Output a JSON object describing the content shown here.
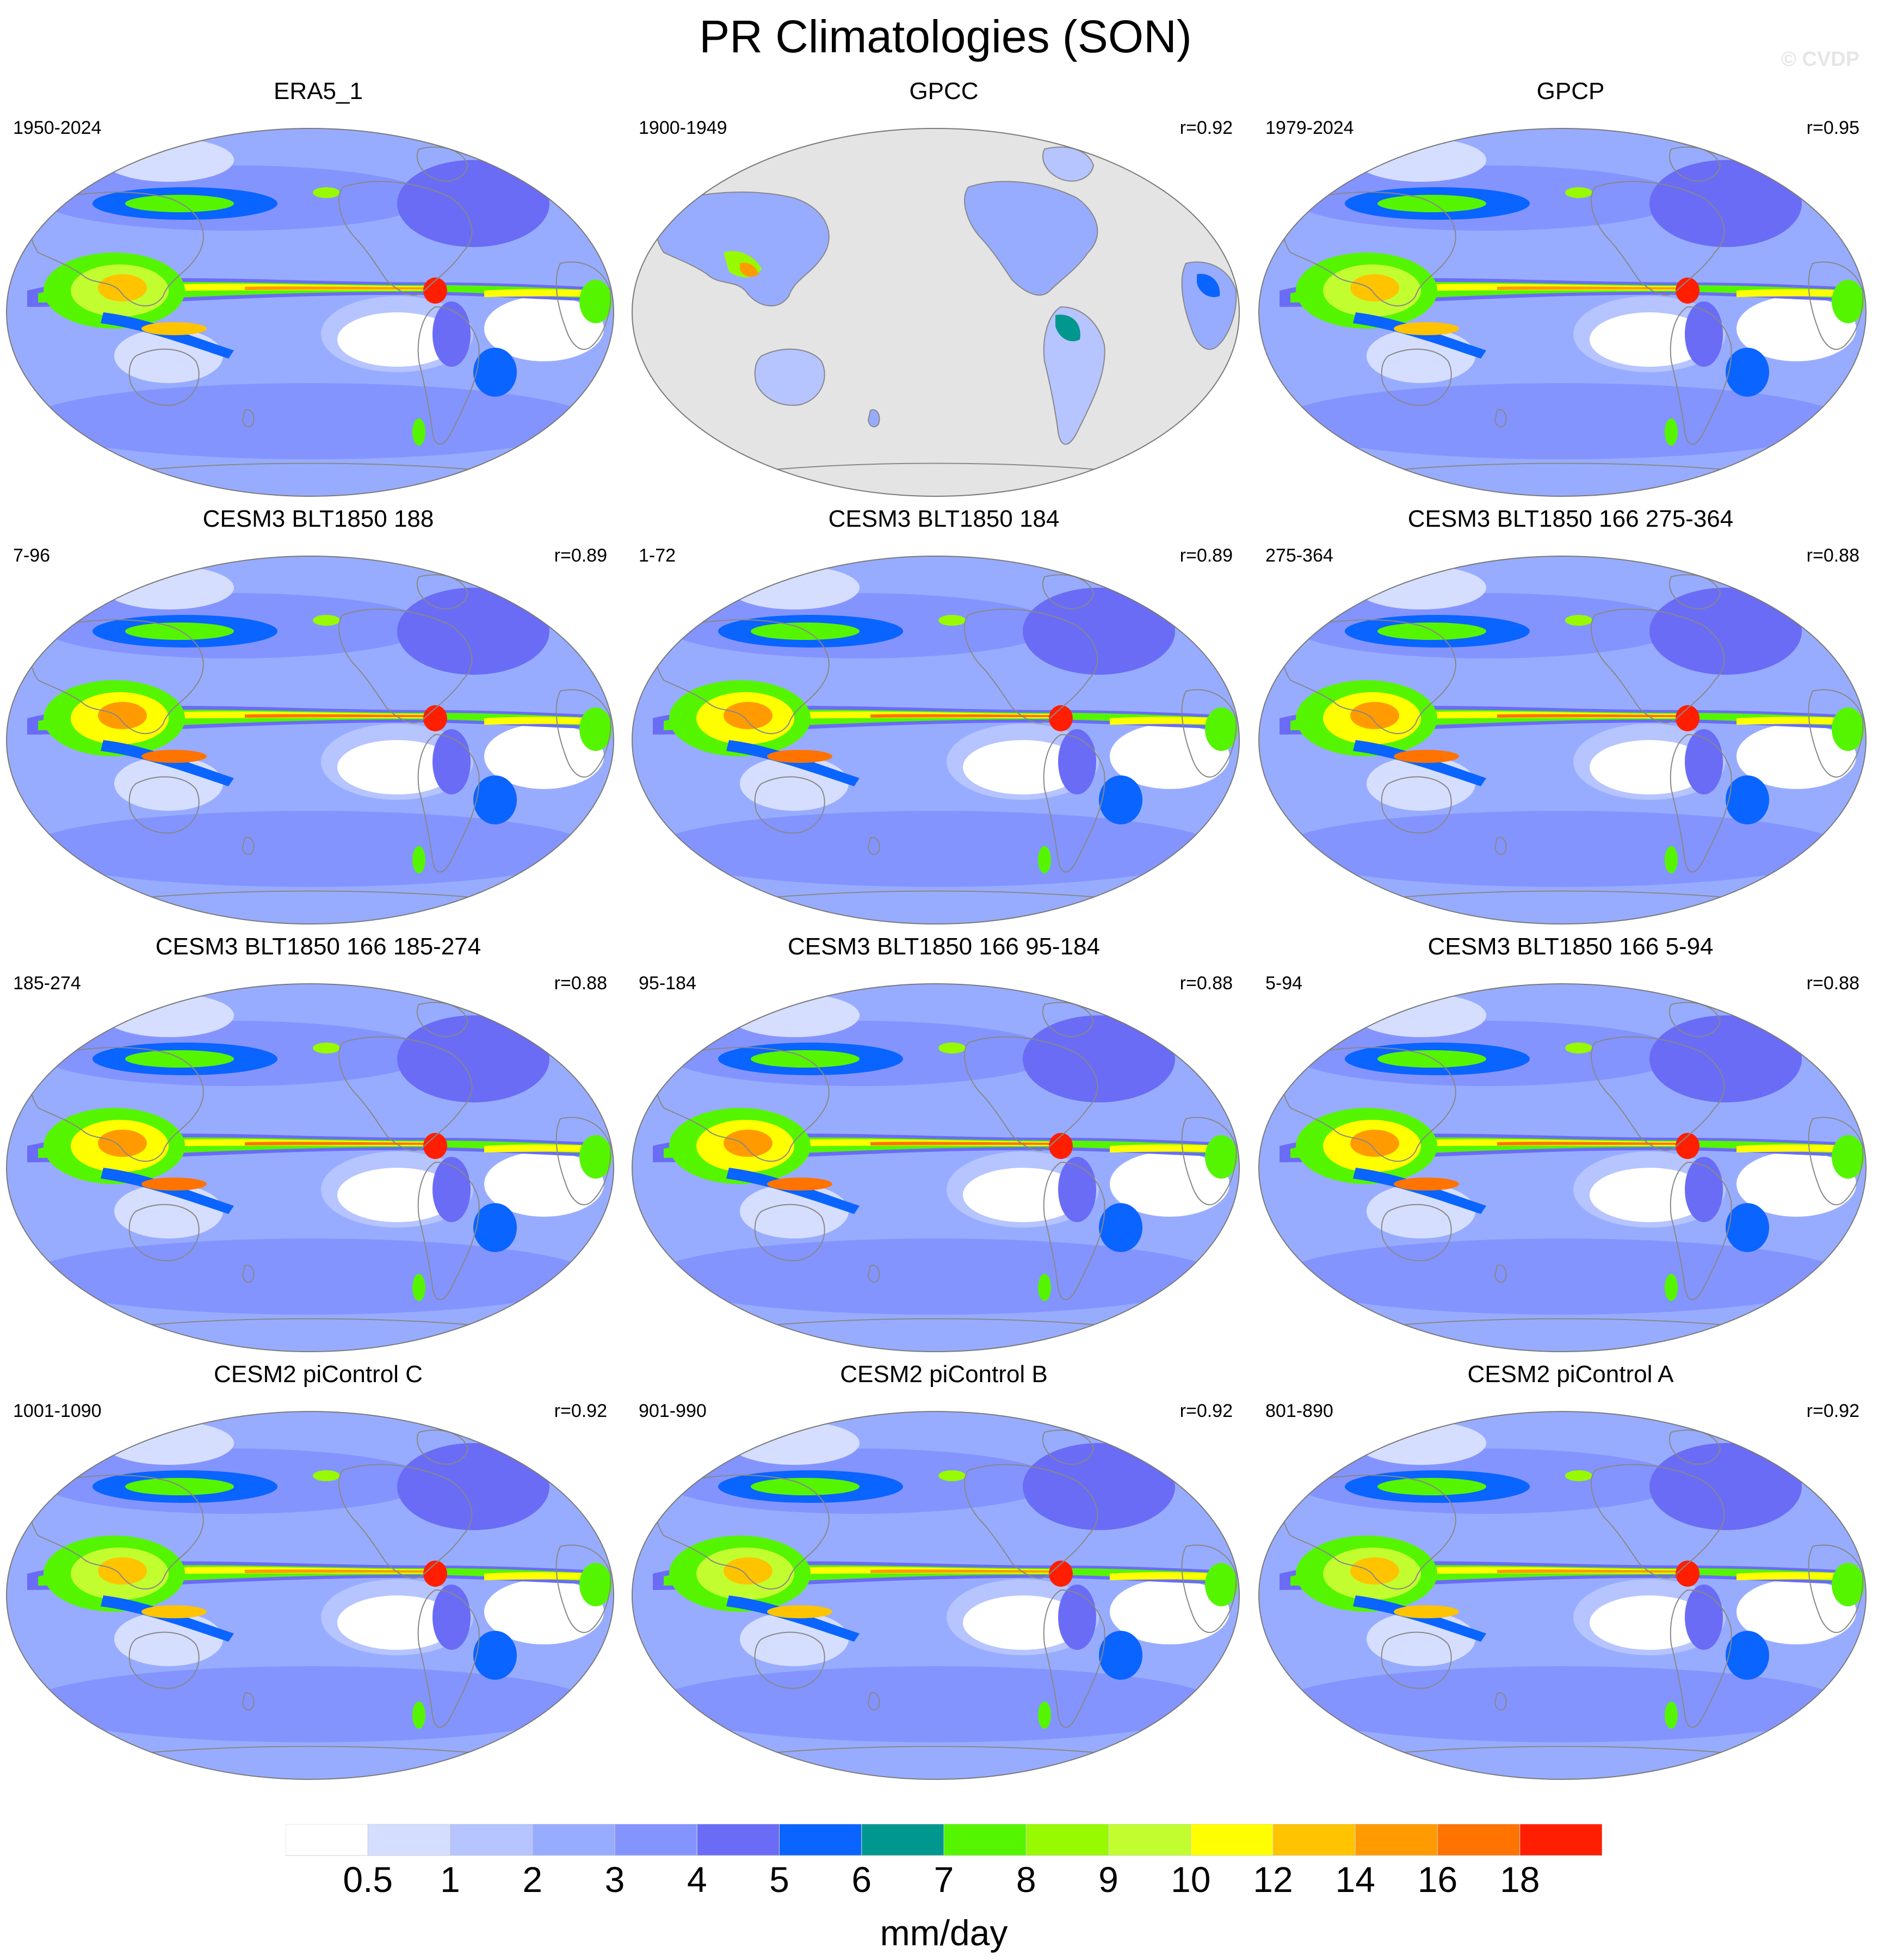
{
  "title": "PR Climatologies (SON)",
  "watermark": "© CVDP",
  "panels": [
    {
      "title": "ERA5_1",
      "years": "1950-2024",
      "corr": "",
      "style": "obs"
    },
    {
      "title": "GPCC",
      "years": "1900-1949",
      "corr": "r=0.92",
      "style": "land"
    },
    {
      "title": "GPCP",
      "years": "1979-2024",
      "corr": "r=0.95",
      "style": "obs"
    },
    {
      "title": "CESM3 BLT1850 188",
      "years": "7-96",
      "corr": "r=0.89",
      "style": "model3"
    },
    {
      "title": "CESM3 BLT1850 184",
      "years": "1-72",
      "corr": "r=0.89",
      "style": "model3"
    },
    {
      "title": "CESM3 BLT1850 166 275-364",
      "years": "275-364",
      "corr": "r=0.88",
      "style": "model3"
    },
    {
      "title": "CESM3 BLT1850 166 185-274",
      "years": "185-274",
      "corr": "r=0.88",
      "style": "model3"
    },
    {
      "title": "CESM3 BLT1850 166 95-184",
      "years": "95-184",
      "corr": "r=0.88",
      "style": "model3"
    },
    {
      "title": "CESM3 BLT1850 166 5-94",
      "years": "5-94",
      "corr": "r=0.88",
      "style": "model3"
    },
    {
      "title": "CESM2 piControl C",
      "years": "1001-1090",
      "corr": "r=0.92",
      "style": "model2"
    },
    {
      "title": "CESM2 piControl B",
      "years": "901-990",
      "corr": "r=0.92",
      "style": "model2"
    },
    {
      "title": "CESM2 piControl A",
      "years": "801-890",
      "corr": "r=0.92",
      "style": "model2"
    }
  ],
  "colorbar": {
    "units": "mm/day",
    "ticks": [
      "0.5",
      "1",
      "2",
      "3",
      "4",
      "5",
      "6",
      "7",
      "8",
      "9",
      "10",
      "12",
      "14",
      "16",
      "18"
    ],
    "colors": [
      "#ffffff",
      "#d6deff",
      "#b6c4ff",
      "#98acff",
      "#8494ff",
      "#6a6cf6",
      "#0a64ff",
      "#00978f",
      "#55f500",
      "#97fa00",
      "#c2fd30",
      "#ffff00",
      "#ffc300",
      "#ff9b00",
      "#ff7300",
      "#ff1e00"
    ]
  },
  "land_mask_color": "#e4e4e4"
}
